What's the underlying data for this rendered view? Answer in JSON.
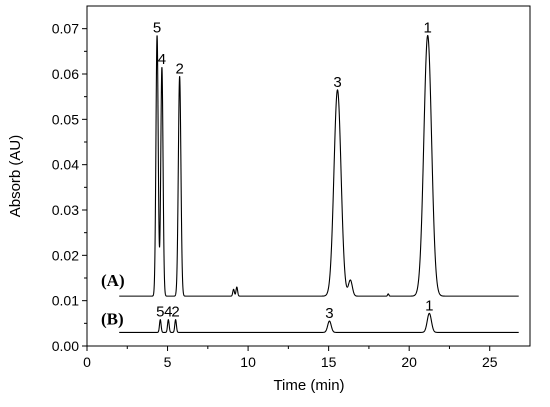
{
  "chart_data": {
    "type": "line",
    "xlabel": "Time (min)",
    "ylabel": "Absorb (AU)",
    "xlim": [
      0,
      27.5
    ],
    "ylim": [
      0,
      0.075
    ],
    "x_ticks": [
      "0",
      "5",
      "10",
      "15",
      "20",
      "25"
    ],
    "x_tick_values": [
      0,
      5,
      10,
      15,
      20,
      25
    ],
    "y_ticks": [
      "0.00",
      "0.01",
      "0.02",
      "0.03",
      "0.04",
      "0.05",
      "0.06",
      "0.07"
    ],
    "y_tick_values": [
      0.0,
      0.01,
      0.02,
      0.03,
      0.04,
      0.05,
      0.06,
      0.07
    ],
    "grid": false,
    "series": [
      {
        "name": "(A)",
        "color": "#000000",
        "x_range": [
          2.0,
          26.8
        ],
        "baseline": 0.011,
        "peaks": [
          {
            "label": "5",
            "x": 4.35,
            "y": 0.0685,
            "width": 0.07
          },
          {
            "label": "4",
            "x": 4.65,
            "y": 0.0615,
            "width": 0.07
          },
          {
            "label": "2",
            "x": 5.75,
            "y": 0.0595,
            "width": 0.08
          },
          {
            "label": "",
            "x": 9.1,
            "y": 0.0125,
            "width": 0.05
          },
          {
            "label": "",
            "x": 9.3,
            "y": 0.013,
            "width": 0.05
          },
          {
            "label": "3",
            "x": 15.55,
            "y": 0.0565,
            "width": 0.22
          },
          {
            "label": "",
            "x": 16.35,
            "y": 0.0145,
            "width": 0.12
          },
          {
            "label": "",
            "x": 18.7,
            "y": 0.0115,
            "width": 0.04
          },
          {
            "label": "1",
            "x": 21.15,
            "y": 0.0685,
            "width": 0.24
          }
        ]
      },
      {
        "name": "(B)",
        "color": "#000000",
        "x_range": [
          2.0,
          26.8
        ],
        "baseline": 0.003,
        "peaks": [
          {
            "label": "5",
            "x": 4.55,
            "y": 0.0058,
            "width": 0.05
          },
          {
            "label": "4",
            "x": 5.05,
            "y": 0.0058,
            "width": 0.05
          },
          {
            "label": "2",
            "x": 5.5,
            "y": 0.0058,
            "width": 0.05
          },
          {
            "label": "3",
            "x": 15.05,
            "y": 0.0055,
            "width": 0.11
          },
          {
            "label": "1",
            "x": 21.25,
            "y": 0.0072,
            "width": 0.13
          }
        ]
      }
    ]
  }
}
